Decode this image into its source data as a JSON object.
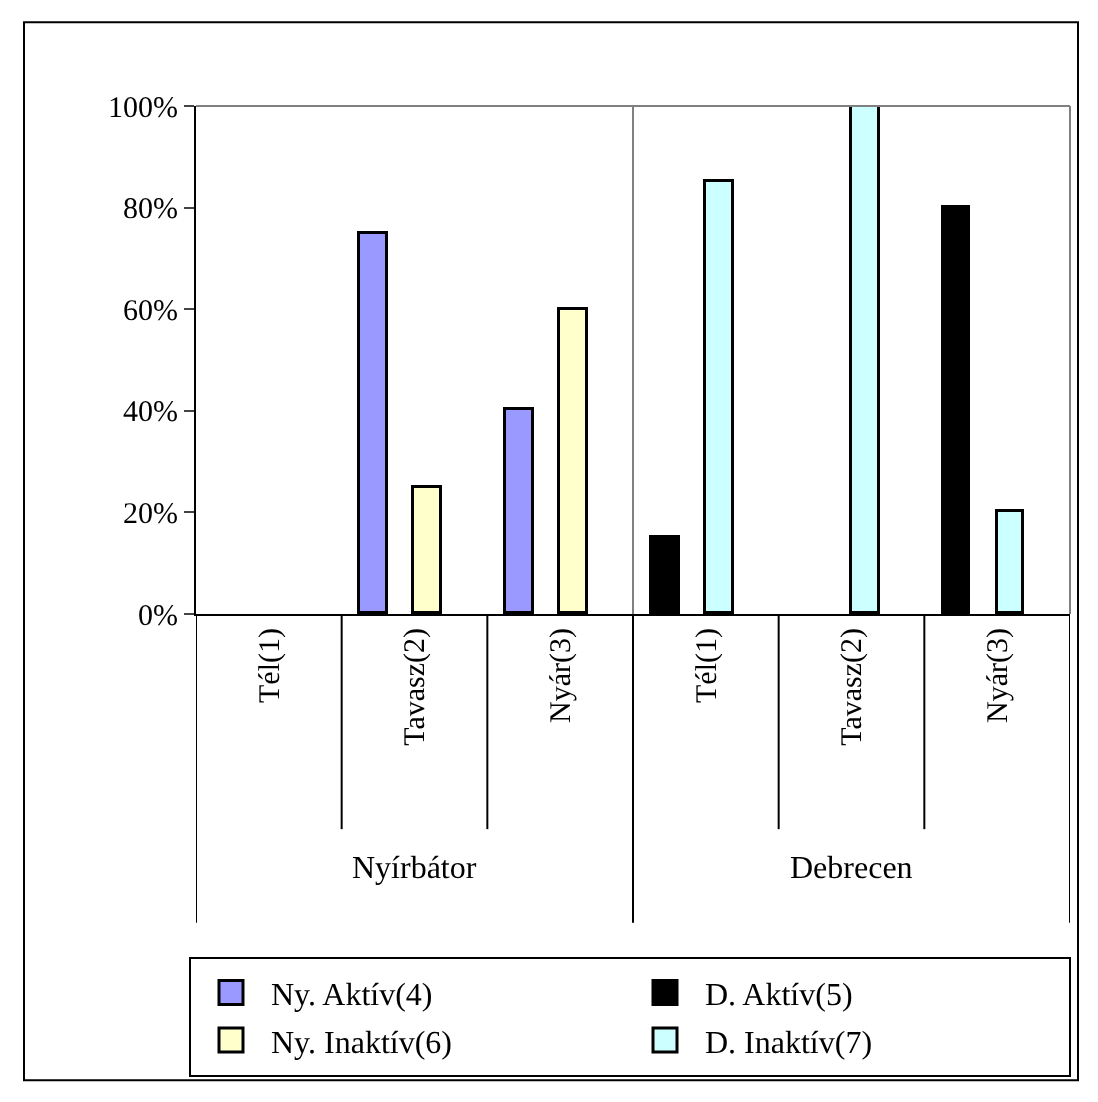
{
  "chart_data": {
    "type": "bar",
    "categories": [
      "Tél(1)",
      "Tavasz(2)",
      "Nyár(3)",
      "Tél(1)",
      "Tavasz(2)",
      "Nyár(3)"
    ],
    "series": [
      {
        "name": "Ny. Aktív(4)",
        "color": "#9999ff",
        "values": [
          null,
          75,
          40,
          null,
          null,
          null
        ]
      },
      {
        "name": "D. Aktív(5)",
        "color": "#000000",
        "values": [
          null,
          null,
          null,
          15,
          null,
          80
        ]
      },
      {
        "name": "Ny. Inaktív(6)",
        "color": "#ffffcc",
        "values": [
          null,
          25,
          60,
          null,
          null,
          null
        ]
      },
      {
        "name": "D. Inaktív(7)",
        "color": "#ccffff",
        "values": [
          null,
          null,
          null,
          85,
          100,
          20
        ]
      }
    ],
    "annotations": [
      "Nyírbátor",
      "Debrecen"
    ],
    "ylim": [
      0,
      100
    ],
    "yticks": [
      {
        "value": 0,
        "label": "0%"
      },
      {
        "value": 20,
        "label": "20%"
      },
      {
        "value": 40,
        "label": "40%"
      },
      {
        "value": 60,
        "label": "60%"
      },
      {
        "value": 80,
        "label": "80%"
      },
      {
        "value": 100,
        "label": "100%"
      }
    ],
    "legend": "bottom"
  }
}
